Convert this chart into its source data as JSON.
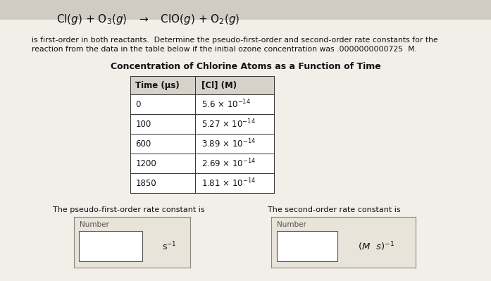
{
  "reaction_line": "Cl(g) + O$_3$(g)  →  ClO(g) + O$_2$(g)",
  "description_line1": "is first-order in both reactants.  Determine the pseudo-first-order and second-order rate constants for the",
  "description_line2": "reaction from the data in the table below if the initial ozone concentration was .0000000000725  M.",
  "table_title": "Concentration of Chlorine Atoms as a Function of Time",
  "col1_header": "Time (μs)",
  "col2_header": "[Cl] (M)",
  "time_values": [
    "0",
    "100",
    "600",
    "1200",
    "1850"
  ],
  "cl_display": [
    "5.6 × 10$^{-14}$",
    "5.27 × 10$^{-14}$",
    "3.89 × 10$^{-14}$",
    "2.69 × 10$^{-14}$",
    "1.81 × 10$^{-14}$"
  ],
  "pseudo_label": "The pseudo-first-order rate constant is",
  "second_label": "The second-order rate constant is",
  "number_label": "Number",
  "unit1": "s$^{-1}$",
  "unit2": "(M  s)$^{-1}$",
  "bg_color": "#f2efe9",
  "header_bg": "#d6d2ca",
  "box_bg": "#e8e4da",
  "text_color": "#111111"
}
